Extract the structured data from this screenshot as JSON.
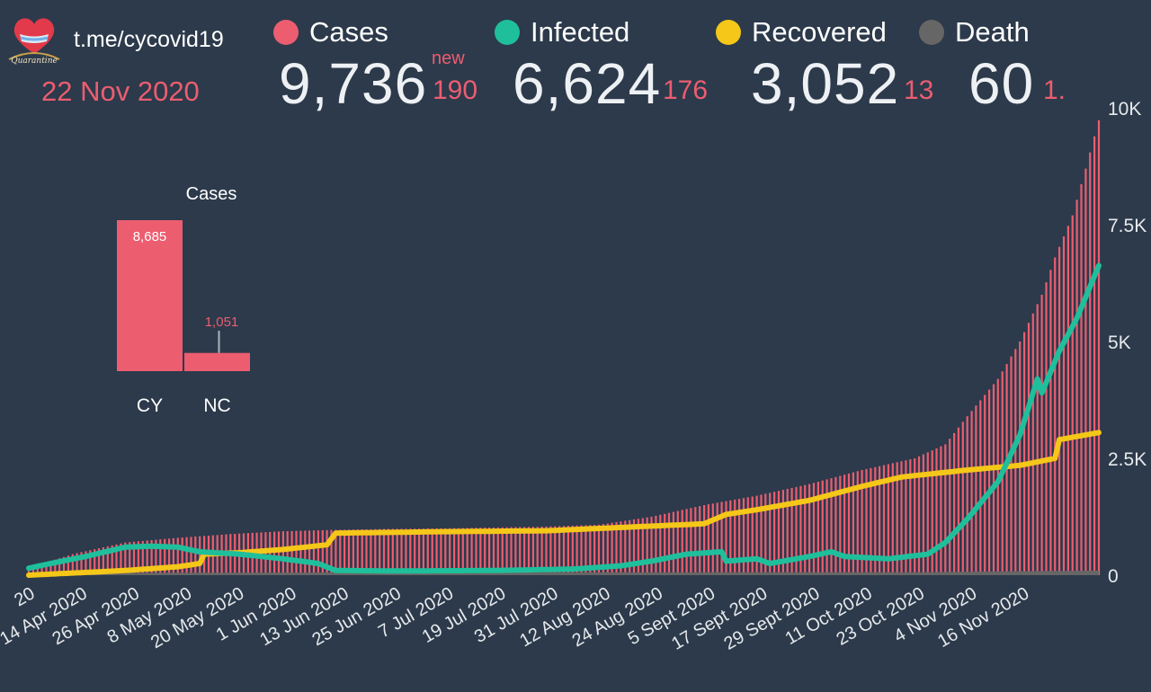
{
  "header": {
    "channel": "t.me/cycovid19",
    "date": "22 Nov 2020",
    "new_label": "new"
  },
  "stats": [
    {
      "label": "Cases",
      "value": "9,736",
      "new": "190",
      "color": "#ec5d70"
    },
    {
      "label": "Infected",
      "value": "6,624",
      "new": "176",
      "color": "#1fbf9c"
    },
    {
      "label": "Recovered",
      "value": "3,052",
      "new": "13",
      "color": "#f4c718"
    },
    {
      "label": "Death",
      "value": "60",
      "new": "1.",
      "color": "#666666"
    }
  ],
  "logo": {
    "icon": "heart-cyprus-flag-icon",
    "text": "Quarantine"
  },
  "chart_data": [
    {
      "type": "bar",
      "title": "",
      "y_axis": {
        "ticks": [
          "0",
          "2.5K",
          "5K",
          "7.5K",
          "10K"
        ],
        "ylim": [
          0,
          10000
        ],
        "position": "right"
      },
      "x_axis": {
        "tick_labels": [
          "20",
          "14 Apr 2020",
          "26 Apr 2020",
          "8 May 2020",
          "20 May 2020",
          "1 Jun 2020",
          "13 Jun 2020",
          "25 Jun 2020",
          "7 Jul 2020",
          "19 Jul 2020",
          "31 Jul 2020",
          "12 Aug 2020",
          "24 Aug 2020",
          "5 Sept 2020",
          "17 Sept 2020",
          "29 Sept 2020",
          "11 Oct 2020",
          "23 Oct 2020",
          "4 Nov 2020",
          "16 Nov 2020"
        ],
        "start_date": "2020-03-23",
        "end_date": "2020-11-22"
      },
      "series": [
        {
          "name": "Cases",
          "type": "bar",
          "color": "#ec5d70",
          "anchors": [
            [
              "2020-03-23",
              150
            ],
            [
              "2020-04-02",
              450
            ],
            [
              "2020-04-14",
              700
            ],
            [
              "2020-04-26",
              800
            ],
            [
              "2020-05-08",
              880
            ],
            [
              "2020-05-20",
              940
            ],
            [
              "2020-06-01",
              970
            ],
            [
              "2020-06-13",
              990
            ],
            [
              "2020-06-25",
              1000
            ],
            [
              "2020-07-07",
              1020
            ],
            [
              "2020-07-19",
              1040
            ],
            [
              "2020-07-31",
              1080
            ],
            [
              "2020-08-12",
              1250
            ],
            [
              "2020-08-24",
              1500
            ],
            [
              "2020-09-05",
              1700
            ],
            [
              "2020-09-17",
              1950
            ],
            [
              "2020-09-29",
              2250
            ],
            [
              "2020-10-11",
              2500
            ],
            [
              "2020-10-18",
              2800
            ],
            [
              "2020-10-23",
              3400
            ],
            [
              "2020-10-30",
              4200
            ],
            [
              "2020-11-04",
              5000
            ],
            [
              "2020-11-09",
              6000
            ],
            [
              "2020-11-12",
              6800
            ],
            [
              "2020-11-16",
              7700
            ],
            [
              "2020-11-19",
              8700
            ],
            [
              "2020-11-22",
              9736
            ]
          ]
        },
        {
          "name": "Infected",
          "type": "line",
          "color": "#1fbf9c",
          "anchors": [
            [
              "2020-03-23",
              150
            ],
            [
              "2020-03-28",
              250
            ],
            [
              "2020-04-05",
              400
            ],
            [
              "2020-04-14",
              600
            ],
            [
              "2020-04-20",
              620
            ],
            [
              "2020-04-26",
              600
            ],
            [
              "2020-05-01",
              500
            ],
            [
              "2020-05-10",
              450
            ],
            [
              "2020-05-20",
              350
            ],
            [
              "2020-05-28",
              250
            ],
            [
              "2020-06-01",
              100
            ],
            [
              "2020-06-15",
              90
            ],
            [
              "2020-07-07",
              100
            ],
            [
              "2020-07-25",
              130
            ],
            [
              "2020-08-05",
              200
            ],
            [
              "2020-08-12",
              300
            ],
            [
              "2020-08-20",
              450
            ],
            [
              "2020-08-28",
              500
            ],
            [
              "2020-08-29",
              300
            ],
            [
              "2020-09-05",
              350
            ],
            [
              "2020-09-08",
              250
            ],
            [
              "2020-09-17",
              400
            ],
            [
              "2020-09-22",
              500
            ],
            [
              "2020-09-25",
              400
            ],
            [
              "2020-10-05",
              350
            ],
            [
              "2020-10-14",
              450
            ],
            [
              "2020-10-18",
              700
            ],
            [
              "2020-10-23",
              1200
            ],
            [
              "2020-10-30",
              2000
            ],
            [
              "2020-11-04",
              3000
            ],
            [
              "2020-11-08",
              4200
            ],
            [
              "2020-11-09",
              3900
            ],
            [
              "2020-11-13",
              4800
            ],
            [
              "2020-11-17",
              5500
            ],
            [
              "2020-11-22",
              6624
            ]
          ]
        },
        {
          "name": "Recovered",
          "type": "line",
          "color": "#f4c718",
          "anchors": [
            [
              "2020-03-23",
              0
            ],
            [
              "2020-04-14",
              100
            ],
            [
              "2020-04-26",
              180
            ],
            [
              "2020-05-01",
              250
            ],
            [
              "2020-05-02",
              450
            ],
            [
              "2020-05-10",
              480
            ],
            [
              "2020-05-20",
              550
            ],
            [
              "2020-05-30",
              650
            ],
            [
              "2020-06-01",
              900
            ],
            [
              "2020-06-25",
              930
            ],
            [
              "2020-07-19",
              950
            ],
            [
              "2020-07-31",
              1000
            ],
            [
              "2020-08-12",
              1050
            ],
            [
              "2020-08-24",
              1100
            ],
            [
              "2020-08-29",
              1300
            ],
            [
              "2020-09-05",
              1400
            ],
            [
              "2020-09-17",
              1600
            ],
            [
              "2020-09-29",
              1900
            ],
            [
              "2020-10-08",
              2100
            ],
            [
              "2020-10-23",
              2250
            ],
            [
              "2020-11-04",
              2350
            ],
            [
              "2020-11-12",
              2500
            ],
            [
              "2020-11-13",
              2900
            ],
            [
              "2020-11-22",
              3052
            ]
          ]
        },
        {
          "name": "Death",
          "type": "area",
          "color": "#666666",
          "anchors": [
            [
              "2020-03-23",
              10
            ],
            [
              "2020-06-01",
              19
            ],
            [
              "2020-10-11",
              24
            ],
            [
              "2020-11-22",
              60
            ]
          ]
        }
      ]
    },
    {
      "type": "bar",
      "title": "Cases",
      "categories": [
        "CY",
        "NC"
      ],
      "values": [
        8685,
        1051
      ],
      "labels": [
        "8,685",
        "1,051"
      ],
      "color": "#ec5d70"
    }
  ]
}
